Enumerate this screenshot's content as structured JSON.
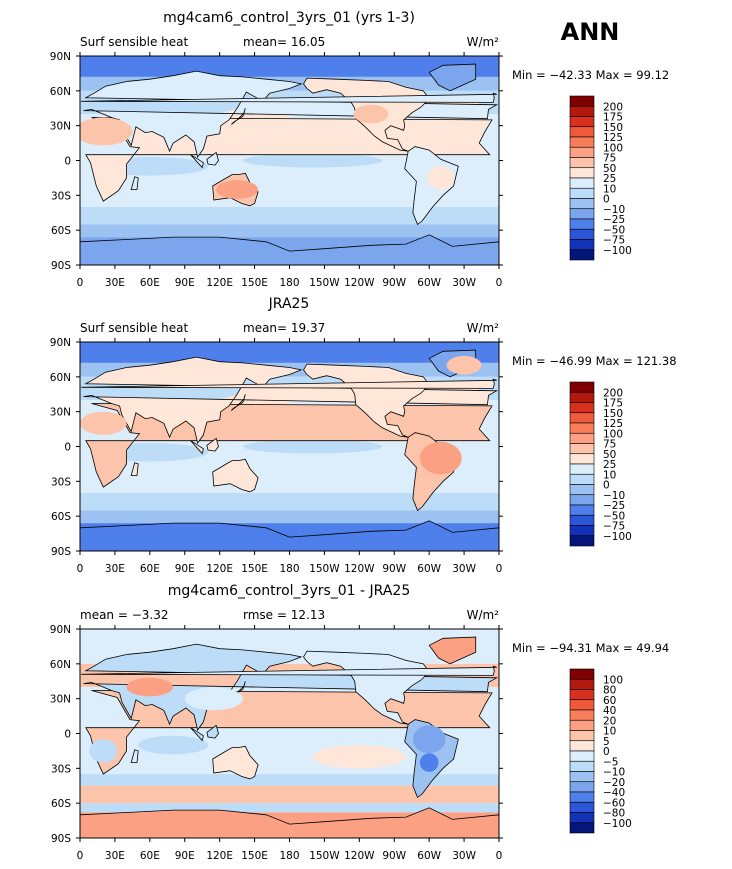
{
  "season": "ANN",
  "panels": [
    {
      "title": "mg4cam6_control_3yrs_01 (yrs 1-3)",
      "left_text": "Surf sensible heat",
      "center_text": "mean=  16.05",
      "units": "W/m²",
      "minmax": "Min = −42.33  Max =  99.12",
      "colorbar_labels": [
        "200",
        "175",
        "150",
        "125",
        "100",
        "75",
        "50",
        "25",
        "10",
        "0",
        "−10",
        "−25",
        "−50",
        "−75",
        "−100"
      ],
      "colors": [
        "#7f0000",
        "#b2180f",
        "#d7301f",
        "#ef5a3a",
        "#f77d5b",
        "#fca083",
        "#fcc4aa",
        "#fee7d9",
        "#dceefb",
        "#bcdcf7",
        "#9cc2f2",
        "#7ba6ee",
        "#4f7fea",
        "#2d55d8",
        "#1232b8",
        "#04167a"
      ]
    },
    {
      "title": "JRA25",
      "left_text": "Surf sensible heat",
      "center_text": "mean=  19.37",
      "units": "W/m²",
      "minmax": "Min = −46.99  Max = 121.38",
      "colorbar_labels": [
        "200",
        "175",
        "150",
        "125",
        "100",
        "75",
        "50",
        "25",
        "10",
        "0",
        "−10",
        "−25",
        "−50",
        "−75",
        "−100"
      ],
      "colors": [
        "#7f0000",
        "#b2180f",
        "#d7301f",
        "#ef5a3a",
        "#f77d5b",
        "#fca083",
        "#fcc4aa",
        "#fee7d9",
        "#dceefb",
        "#bcdcf7",
        "#9cc2f2",
        "#7ba6ee",
        "#4f7fea",
        "#2d55d8",
        "#1232b8",
        "#04167a"
      ]
    },
    {
      "title": "mg4cam6_control_3yrs_01 - JRA25",
      "left_text": "mean =   −3.32",
      "center_text": "rmse =   12.13",
      "units": "W/m²",
      "minmax": "Min = −94.31  Max =  49.94",
      "colorbar_labels": [
        "100",
        "80",
        "60",
        "40",
        "20",
        "10",
        "5",
        "0",
        "−5",
        "−10",
        "−20",
        "−40",
        "−60",
        "−80",
        "−100"
      ],
      "colors": [
        "#7f0000",
        "#b2180f",
        "#d7301f",
        "#ef5a3a",
        "#f77d5b",
        "#fca083",
        "#fcc4aa",
        "#fee7d9",
        "#dceefb",
        "#bcdcf7",
        "#9cc2f2",
        "#7ba6ee",
        "#4f7fea",
        "#2d55d8",
        "#1232b8",
        "#04167a"
      ]
    }
  ],
  "chart_data": {
    "type": "heatmap",
    "x_ticks": [
      "0",
      "30E",
      "60E",
      "90E",
      "120E",
      "150E",
      "180",
      "150W",
      "120W",
      "90W",
      "60W",
      "30W",
      "0"
    ],
    "y_ticks": [
      "90N",
      "60N",
      "30N",
      "0",
      "30S",
      "60S",
      "90S"
    ],
    "xlim": [
      0,
      360
    ],
    "ylim": [
      -90,
      90
    ]
  }
}
